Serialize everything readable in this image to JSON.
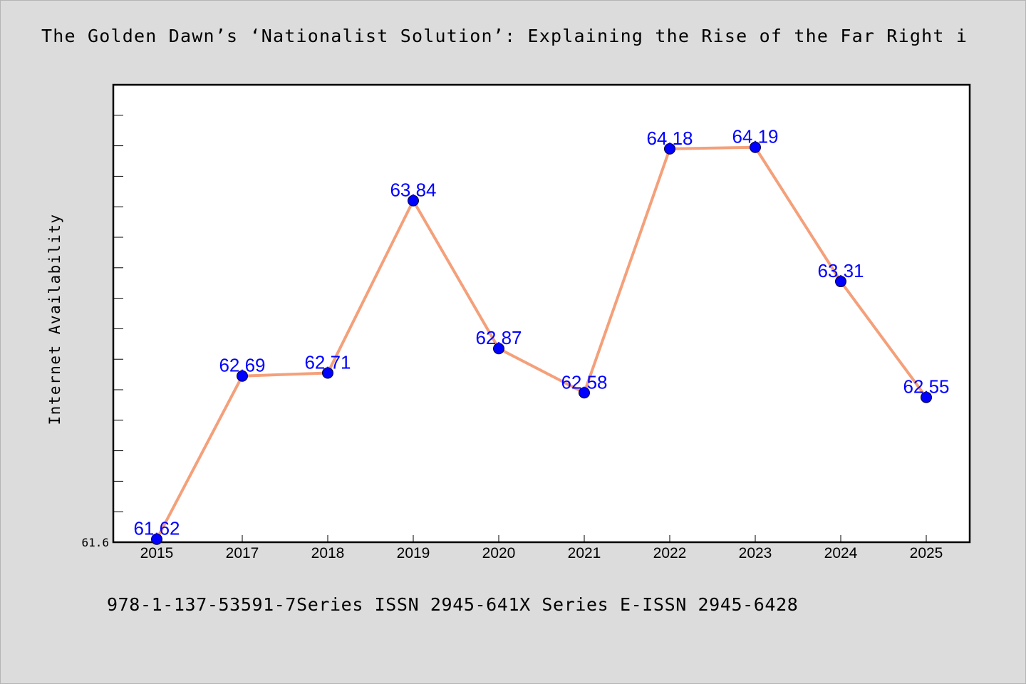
{
  "title": "The Golden Dawn’s ‘Nationalist Solution’: Explaining the Rise of the Far Right i",
  "footer": "978-1-137-53591-7Series ISSN 2945-641X Series E-ISSN 2945-6428",
  "colors": {
    "background": "#dcdcdc",
    "plot_background": "#ffffff",
    "line": "#f4a07a",
    "marker": "#0000ff",
    "data_label": "#0000ff"
  },
  "chart_data": {
    "type": "line",
    "title": "The Golden Dawn’s ‘Nationalist Solution’: Explaining the Rise of the Far Right i",
    "xlabel": "",
    "ylabel": "Internet Availability",
    "categories": [
      "2015",
      "2017",
      "2018",
      "2019",
      "2020",
      "2021",
      "2022",
      "2023",
      "2024",
      "2025"
    ],
    "series": [
      {
        "values": [
          61.62,
          62.69,
          62.71,
          63.84,
          62.87,
          62.58,
          64.18,
          64.19,
          63.31,
          62.55
        ],
        "labels": [
          "61.62",
          "62.69",
          "62.71",
          "63.84",
          "62.87",
          "62.58",
          "64.18",
          "64.19",
          "63.31",
          "62.55"
        ]
      }
    ],
    "ylim": [
      61.6,
      64.6
    ],
    "yticks_labeled": [
      "61.6"
    ],
    "grid": false,
    "legend": "none"
  }
}
